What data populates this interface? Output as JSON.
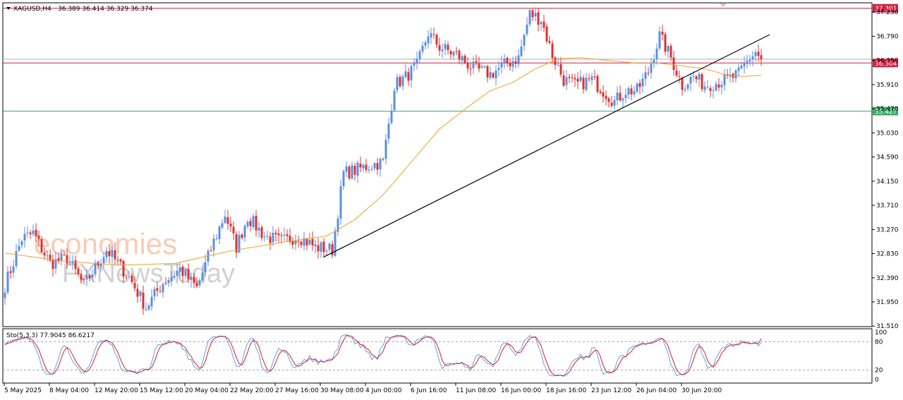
{
  "header": {
    "symbol": "XAGUSD,H4",
    "ohlc": "36.389 36.414 36.329 36.374",
    "stoch_label": "Sto(5,3,3) 77.9045 86.6217"
  },
  "watermark": {
    "brand": "economies",
    "sub": "FXNewsToday"
  },
  "colors": {
    "bull": "#5b8fe0",
    "bear": "#e03030",
    "ma": "#f0a030",
    "trendline": "#000000",
    "level_red": "#d02040",
    "level_green": "#3aaa6a",
    "stoch_main": "#6a9be8",
    "stoch_signal": "#d02030"
  },
  "chart_data": {
    "type": "candlestick",
    "symbol": "XAGUSD",
    "timeframe": "H4",
    "y_range": [
      31.5,
      37.4
    ],
    "y_ticks": [
      "37.230",
      "36.790",
      "36.350",
      "35.910",
      "35.470",
      "35.030",
      "34.590",
      "34.150",
      "33.710",
      "33.270",
      "32.830",
      "32.390",
      "31.950",
      "31.510"
    ],
    "x_labels": [
      "5 May 2025",
      "8 May 04:00",
      "12 May 20:00",
      "15 May 12:00",
      "20 May 04:00",
      "22 May 20:00",
      "27 May 16:00",
      "30 May 08:00",
      "4 Jun 00:00",
      "6 Jun 16:00",
      "11 Jun 08:00",
      "16 Jun 00:00",
      "18 Jun 16:00",
      "23 Jun 12:00",
      "26 Jun 04:00",
      "30 Jun 20:00"
    ],
    "levels": [
      {
        "label": "37.301",
        "value": 37.301,
        "color": "red"
      },
      {
        "label": "36.304",
        "value": 36.304,
        "color": "red"
      },
      {
        "label": "35.427",
        "value": 35.427,
        "color": "green"
      }
    ],
    "current_price_label": "36.374",
    "trendline": {
      "from": {
        "bar": 113,
        "value": 32.77
      },
      "to": {
        "bar": 271,
        "value": 36.82
      }
    },
    "anchors_close": [
      [
        0,
        32.25
      ],
      [
        6,
        33.1
      ],
      [
        10,
        33.2
      ],
      [
        16,
        32.65
      ],
      [
        22,
        32.75
      ],
      [
        28,
        32.25
      ],
      [
        36,
        32.9
      ],
      [
        44,
        32.4
      ],
      [
        50,
        31.85
      ],
      [
        56,
        32.3
      ],
      [
        62,
        32.55
      ],
      [
        68,
        32.2
      ],
      [
        74,
        33.05
      ],
      [
        78,
        33.55
      ],
      [
        82,
        32.95
      ],
      [
        86,
        33.5
      ],
      [
        92,
        33.15
      ],
      [
        98,
        33.05
      ],
      [
        104,
        33.15
      ],
      [
        110,
        32.95
      ],
      [
        116,
        32.9
      ],
      [
        120,
        34.3
      ],
      [
        124,
        34.35
      ],
      [
        130,
        34.45
      ],
      [
        134,
        34.5
      ],
      [
        138,
        35.9
      ],
      [
        142,
        36.05
      ],
      [
        146,
        36.25
      ],
      [
        150,
        36.85
      ],
      [
        154,
        36.6
      ],
      [
        160,
        36.45
      ],
      [
        166,
        36.2
      ],
      [
        172,
        36.1
      ],
      [
        178,
        36.3
      ],
      [
        182,
        36.4
      ],
      [
        186,
        37.2
      ],
      [
        190,
        37.1
      ],
      [
        194,
        36.45
      ],
      [
        198,
        36.0
      ],
      [
        202,
        35.9
      ],
      [
        208,
        36.0
      ],
      [
        212,
        35.8
      ],
      [
        216,
        35.6
      ],
      [
        220,
        35.8
      ],
      [
        224,
        35.8
      ],
      [
        228,
        36.15
      ],
      [
        232,
        36.8
      ],
      [
        236,
        36.4
      ],
      [
        240,
        35.9
      ],
      [
        244,
        36.05
      ],
      [
        248,
        35.9
      ],
      [
        252,
        35.95
      ],
      [
        256,
        36.0
      ],
      [
        260,
        36.1
      ],
      [
        264,
        36.4
      ],
      [
        266,
        36.5
      ],
      [
        268,
        36.37
      ]
    ],
    "ma_curve": [
      [
        0,
        32.84
      ],
      [
        20,
        32.7
      ],
      [
        40,
        32.62
      ],
      [
        60,
        32.65
      ],
      [
        80,
        32.88
      ],
      [
        100,
        33.05
      ],
      [
        114,
        33.15
      ],
      [
        124,
        33.45
      ],
      [
        134,
        33.9
      ],
      [
        144,
        34.5
      ],
      [
        154,
        35.1
      ],
      [
        164,
        35.5
      ],
      [
        172,
        35.8
      ],
      [
        180,
        35.95
      ],
      [
        188,
        36.2
      ],
      [
        196,
        36.38
      ],
      [
        204,
        36.4
      ],
      [
        214,
        36.35
      ],
      [
        224,
        36.3
      ],
      [
        232,
        36.3
      ],
      [
        240,
        36.25
      ],
      [
        248,
        36.2
      ],
      [
        256,
        36.08
      ],
      [
        262,
        36.06
      ],
      [
        268,
        36.08
      ]
    ],
    "stochastic": {
      "k_period": 5,
      "d_period": 3,
      "slowing": 3,
      "main": 77.9045,
      "signal": 86.6217,
      "levels": [
        80,
        20
      ],
      "scale_labels": [
        "100",
        "80",
        "20",
        "0"
      ]
    }
  }
}
